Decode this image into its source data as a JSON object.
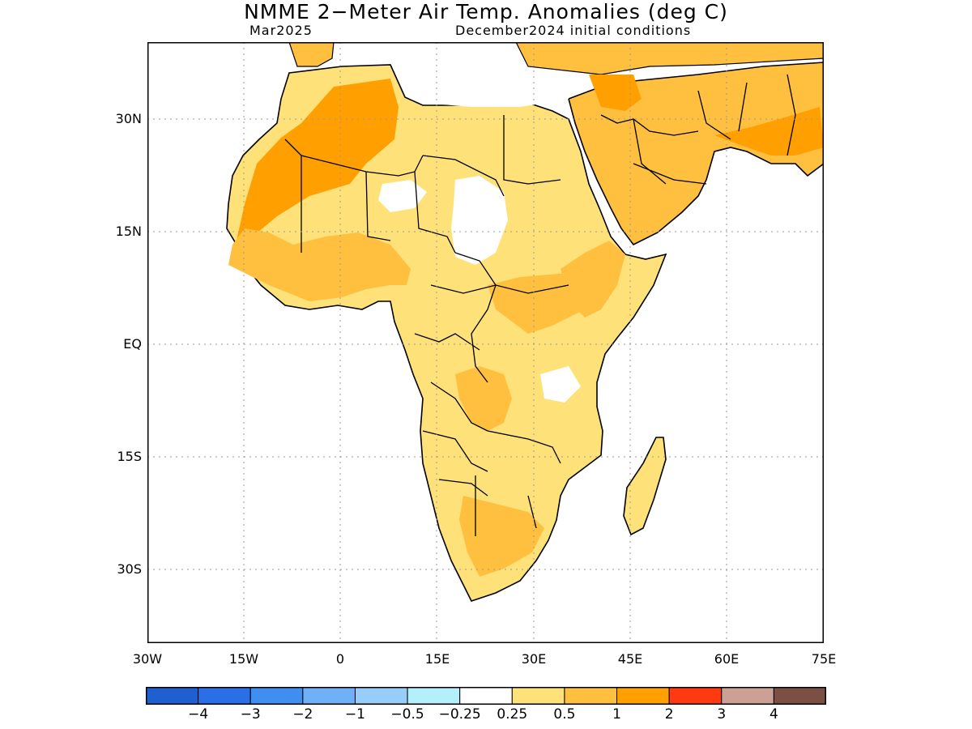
{
  "title": "NMME 2−Meter Air Temp. Anomalies (deg C)",
  "subtitle_left": "Mar2025",
  "subtitle_right": "December2024 initial conditions",
  "lat_labels": [
    "30N",
    "15N",
    "EQ",
    "15S",
    "30S"
  ],
  "lon_labels": [
    "30W",
    "15W",
    "0",
    "15E",
    "30E",
    "45E",
    "60E",
    "75E"
  ],
  "colorbar": {
    "colors": [
      "#1f5fcf",
      "#2a6fe6",
      "#3f8ef0",
      "#6fb0f7",
      "#97cdf9",
      "#b3f0fb",
      "#ffffff",
      "#ffe17a",
      "#ffbf3f",
      "#ffa000",
      "#ff3a10",
      "#cba196",
      "#7a4f44"
    ],
    "labels": [
      "−4",
      "−3",
      "−2",
      "−1",
      "−0.5",
      "−0.25",
      "0.25",
      "0.5",
      "1",
      "2",
      "3",
      "4"
    ]
  },
  "legend_colors": {
    "anomaly_0_25_0_5": "#ffe17a",
    "anomaly_0_5_1": "#ffbf3f",
    "anomaly_1_2": "#ffa000"
  }
}
